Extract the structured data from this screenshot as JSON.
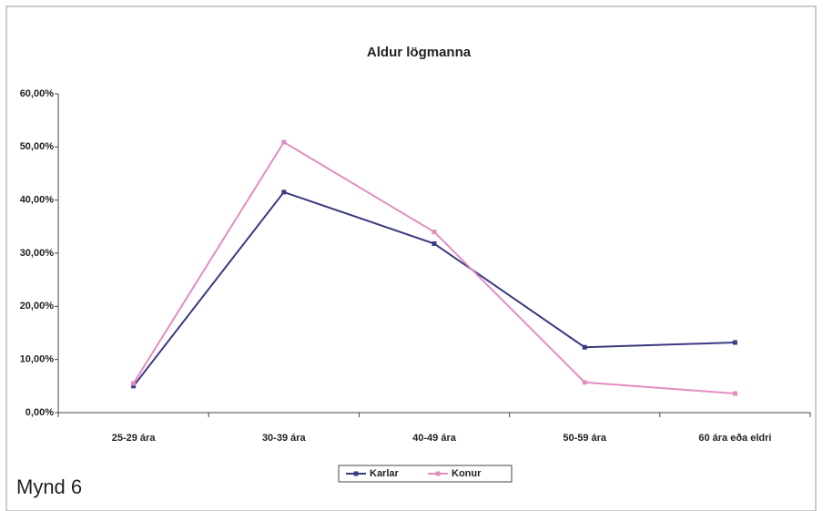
{
  "chart_data": {
    "type": "line",
    "title": "Aldur lögmanna",
    "categories": [
      "25-29 ára",
      "30-39 ára",
      "40-49 ára",
      "50-59 ára",
      "60 ára eða eldri"
    ],
    "series": [
      {
        "name": "Karlar",
        "color": "#3b3a80",
        "values": [
          5.0,
          41.5,
          31.8,
          12.3,
          13.2
        ]
      },
      {
        "name": "Konur",
        "color": "#e08ec0",
        "values": [
          5.5,
          50.9,
          34.0,
          5.7,
          3.6
        ]
      }
    ],
    "ylim": [
      0,
      60
    ],
    "yticks": [
      {
        "value": 0,
        "label": "0,00%"
      },
      {
        "value": 10,
        "label": "10,00%"
      },
      {
        "value": 20,
        "label": "20,00%"
      },
      {
        "value": 30,
        "label": "30,00%"
      },
      {
        "value": 40,
        "label": "40,00%"
      },
      {
        "value": 50,
        "label": "50,00%"
      },
      {
        "value": 60,
        "label": "60,00%"
      }
    ],
    "legend": "bottom"
  },
  "caption": "Mynd 6"
}
